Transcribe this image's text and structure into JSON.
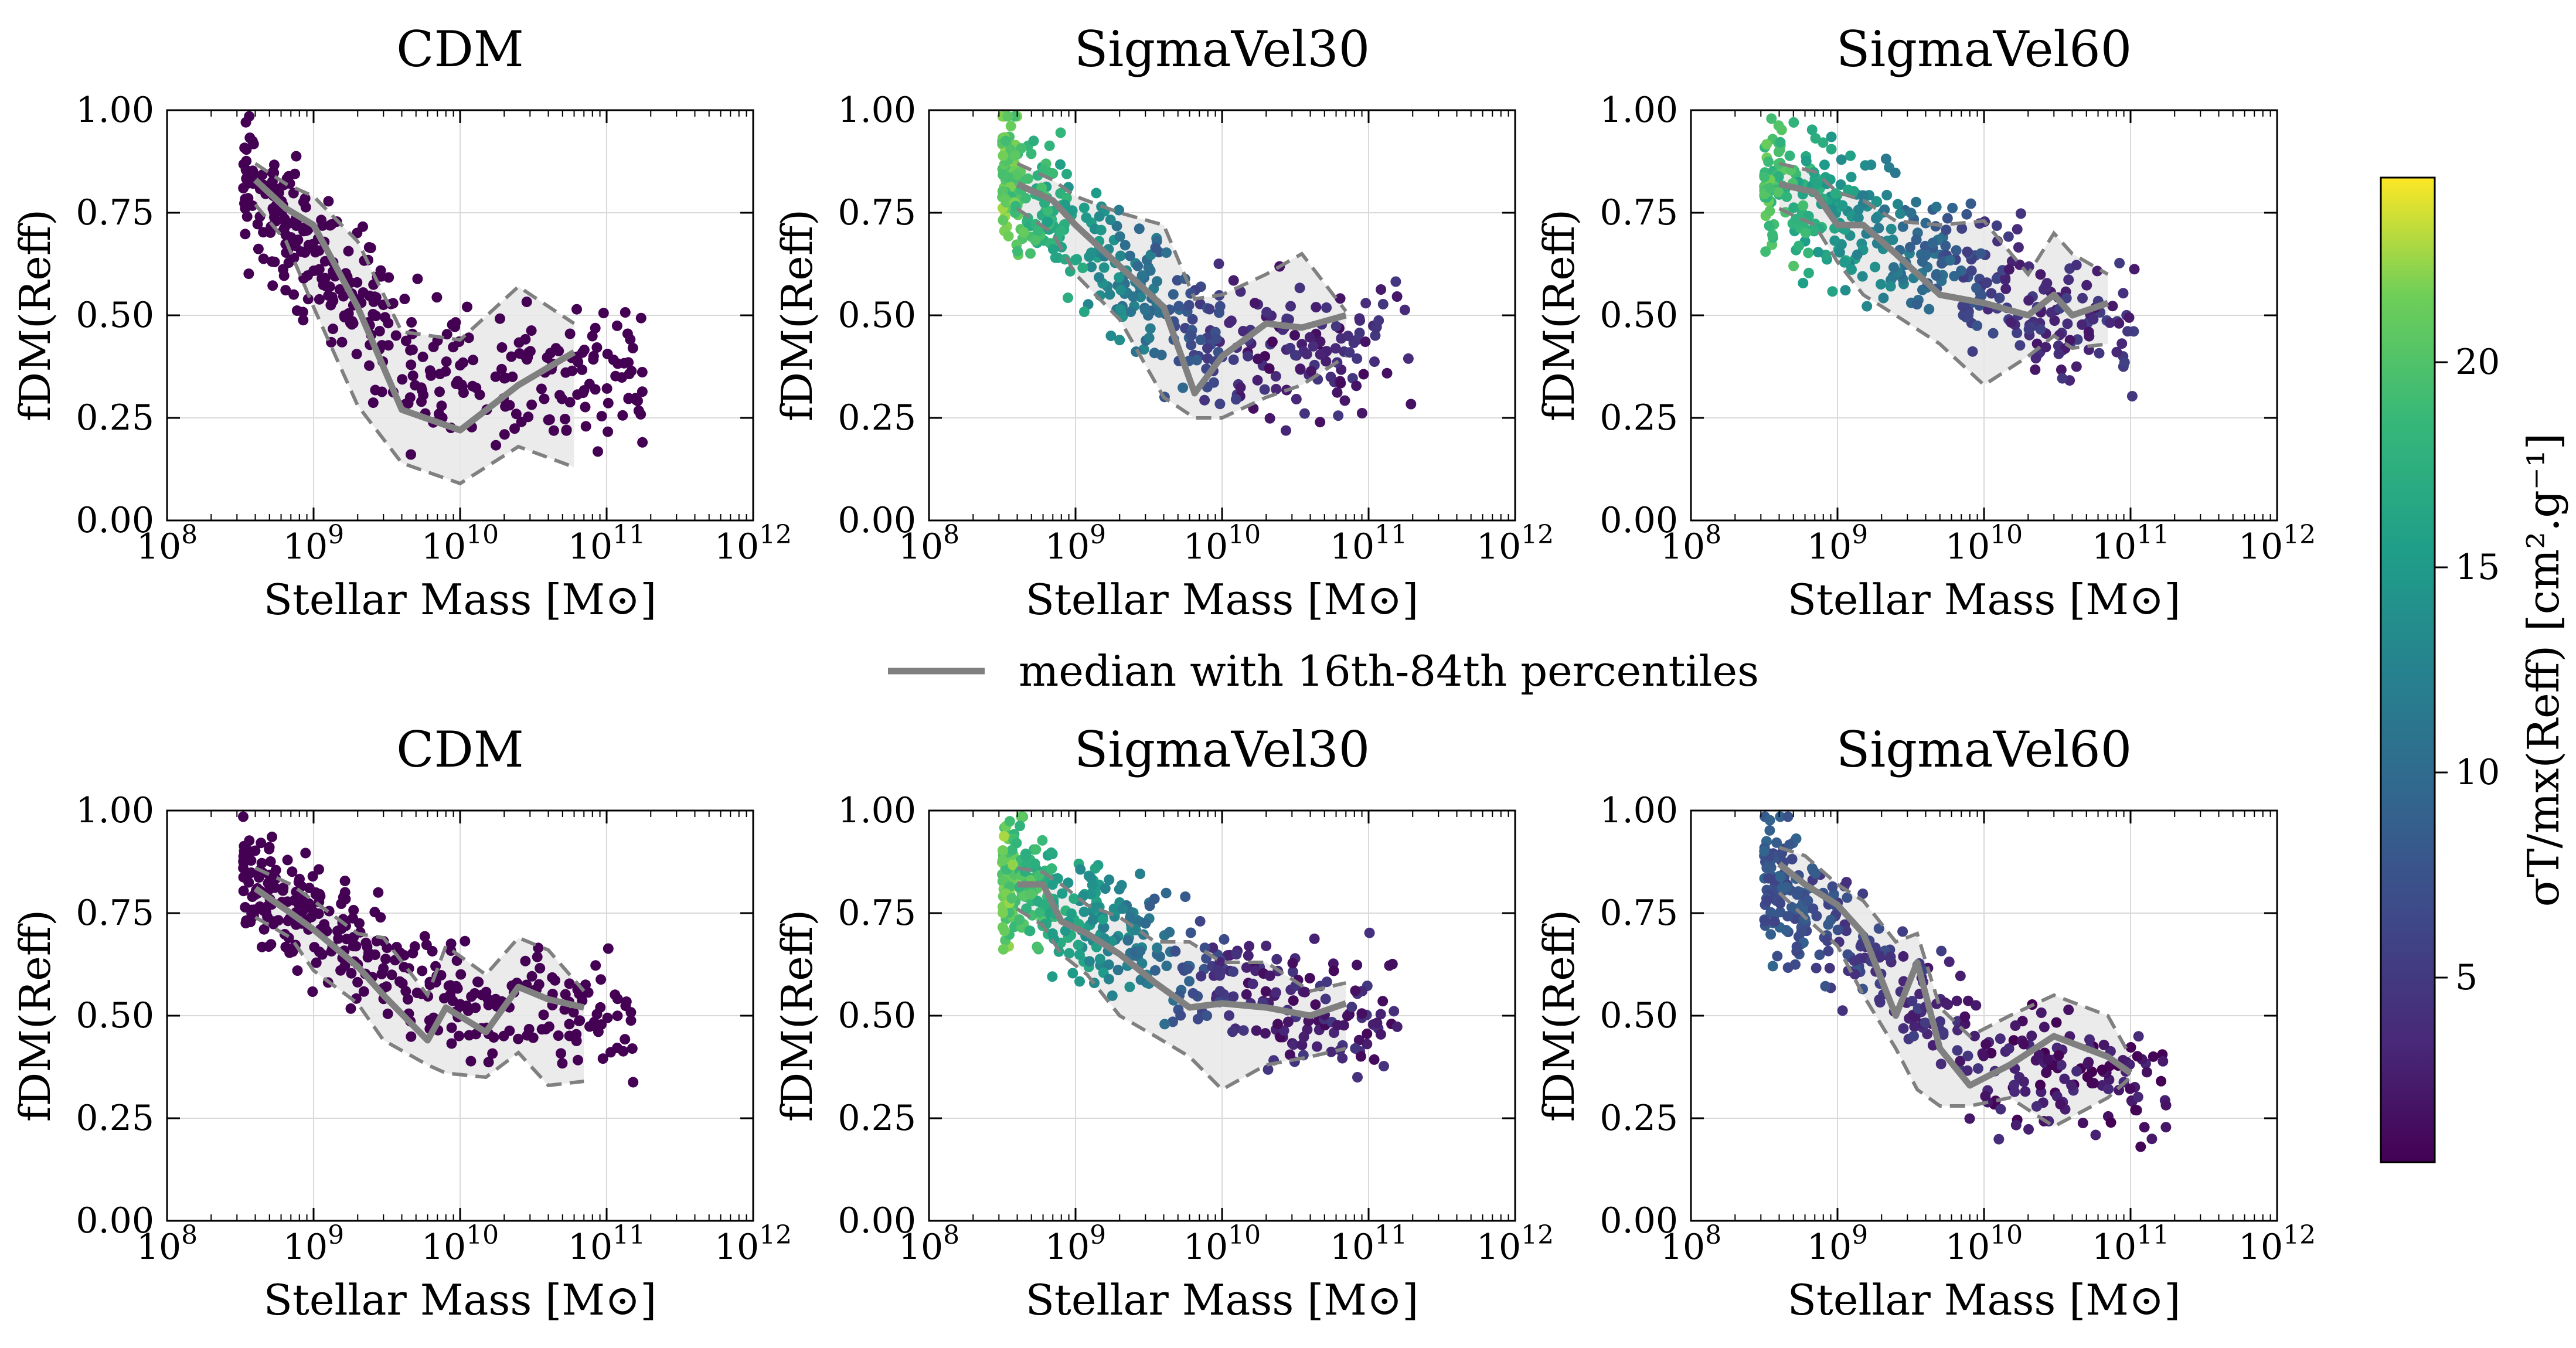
{
  "figure": {
    "legend_label": "median with 16th-84th percentiles",
    "median_color": "#808080",
    "band_color": "#e8e8e8",
    "grid_color": "#d9d9d9"
  },
  "colorbar": {
    "label": "σT/mx(Reff) [cm².g⁻¹]",
    "range": [
      0.5,
      24.5
    ],
    "ticks": [
      5,
      10,
      15,
      20
    ],
    "tick_labels": [
      "5",
      "10",
      "15",
      "20"
    ],
    "colormap": "viridis"
  },
  "chart_data": [
    {
      "type": "scatter",
      "title": "CDM",
      "xlabel": "Stellar Mass [M⊙]",
      "ylabel": "fDM(Reff)",
      "xscale": "log",
      "xlim": [
        100000000.0,
        1000000000000.0
      ],
      "ylim": [
        0,
        1
      ],
      "xtick_labels": [
        "10^8",
        "10^9",
        "10^10",
        "10^11",
        "10^12"
      ],
      "ytick_labels": [
        "0.00",
        "0.25",
        "0.50",
        "0.75",
        "1.00"
      ],
      "grid": true,
      "color_range": [
        0.5,
        1.5
      ],
      "median": {
        "x": [
          400000000.0,
          650000000.0,
          1000000000.0,
          2000000000.0,
          4000000000.0,
          10000000000.0,
          25000000000.0,
          60000000000.0
        ],
        "y": [
          0.83,
          0.76,
          0.72,
          0.52,
          0.27,
          0.22,
          0.33,
          0.41
        ],
        "p16": [
          0.77,
          0.68,
          0.52,
          0.28,
          0.14,
          0.09,
          0.18,
          0.13
        ],
        "p84": [
          0.87,
          0.82,
          0.79,
          0.68,
          0.46,
          0.44,
          0.57,
          0.48
        ]
      },
      "points": {
        "n": 360,
        "x_log_range": [
          8.52,
          11.25
        ],
        "slope": -0.42,
        "plateau_y": 0.35,
        "scatter": 0.13,
        "color_low": 0.7,
        "color_high": 1.3,
        "seed": 11
      }
    },
    {
      "type": "scatter",
      "title": "SigmaVel30",
      "xlabel": "Stellar Mass [M⊙]",
      "ylabel": "fDM(Reff)",
      "xscale": "log",
      "xlim": [
        100000000.0,
        1000000000000.0
      ],
      "ylim": [
        0,
        1
      ],
      "xtick_labels": [
        "10^8",
        "10^9",
        "10^10",
        "10^11",
        "10^12"
      ],
      "ytick_labels": [
        "0.00",
        "0.25",
        "0.50",
        "0.75",
        "1.00"
      ],
      "grid": true,
      "color_range": [
        0.5,
        24.5
      ],
      "median": {
        "x": [
          400000000.0,
          700000000.0,
          1000000000.0,
          2000000000.0,
          4000000000.0,
          6500000000.0,
          10000000000.0,
          20000000000.0,
          35000000000.0,
          70000000000.0
        ],
        "y": [
          0.82,
          0.78,
          0.72,
          0.62,
          0.52,
          0.31,
          0.4,
          0.48,
          0.47,
          0.5
        ],
        "p16": [
          0.76,
          0.7,
          0.6,
          0.49,
          0.3,
          0.25,
          0.25,
          0.3,
          0.33,
          0.4
        ],
        "p84": [
          0.87,
          0.83,
          0.79,
          0.75,
          0.72,
          0.54,
          0.55,
          0.6,
          0.65,
          0.51
        ]
      },
      "points": {
        "n": 420,
        "x_log_range": [
          8.5,
          11.3
        ],
        "slope": -0.3,
        "plateau_y": 0.42,
        "scatter": 0.12,
        "color_low": 3,
        "color_high": 21,
        "seed": 23
      }
    },
    {
      "type": "scatter",
      "title": "SigmaVel60",
      "xlabel": "Stellar Mass [M⊙]",
      "ylabel": "fDM(Reff)",
      "xscale": "log",
      "xlim": [
        100000000.0,
        1000000000000.0
      ],
      "ylim": [
        0,
        1
      ],
      "xtick_labels": [
        "10^8",
        "10^9",
        "10^10",
        "10^11",
        "10^12"
      ],
      "ytick_labels": [
        "0.00",
        "0.25",
        "0.50",
        "0.75",
        "1.00"
      ],
      "grid": true,
      "color_range": [
        0.5,
        24.5
      ],
      "median": {
        "x": [
          400000000.0,
          700000000.0,
          1000000000.0,
          1500000000.0,
          2500000000.0,
          5000000000.0,
          10000000000.0,
          20000000000.0,
          30000000000.0,
          40000000000.0,
          70000000000.0
        ],
        "y": [
          0.82,
          0.8,
          0.72,
          0.72,
          0.65,
          0.55,
          0.53,
          0.5,
          0.55,
          0.5,
          0.53
        ],
        "p16": [
          0.76,
          0.72,
          0.63,
          0.55,
          0.5,
          0.43,
          0.33,
          0.4,
          0.45,
          0.42,
          0.43
        ],
        "p84": [
          0.87,
          0.85,
          0.8,
          0.78,
          0.73,
          0.72,
          0.73,
          0.6,
          0.7,
          0.65,
          0.6
        ]
      },
      "points": {
        "n": 400,
        "x_log_range": [
          8.5,
          11.05
        ],
        "slope": -0.17,
        "plateau_y": 0.48,
        "scatter": 0.12,
        "color_low": 4,
        "color_high": 20,
        "seed": 37
      }
    },
    {
      "type": "scatter",
      "title": "CDM",
      "xlabel": "Stellar Mass [M⊙]",
      "ylabel": "fDM(Reff)",
      "xscale": "log",
      "xlim": [
        100000000.0,
        1000000000000.0
      ],
      "ylim": [
        0,
        1
      ],
      "xtick_labels": [
        "10^8",
        "10^9",
        "10^10",
        "10^11",
        "10^12"
      ],
      "ytick_labels": [
        "0.00",
        "0.25",
        "0.50",
        "0.75",
        "1.00"
      ],
      "grid": true,
      "color_range": [
        0.5,
        1.5
      ],
      "median": {
        "x": [
          400000000.0,
          700000000.0,
          1000000000.0,
          2000000000.0,
          3000000000.0,
          6000000000.0,
          8000000000.0,
          15000000000.0,
          25000000000.0,
          40000000000.0,
          70000000000.0
        ],
        "y": [
          0.81,
          0.75,
          0.71,
          0.62,
          0.55,
          0.44,
          0.52,
          0.46,
          0.57,
          0.54,
          0.52
        ],
        "p16": [
          0.74,
          0.69,
          0.61,
          0.53,
          0.44,
          0.38,
          0.36,
          0.35,
          0.41,
          0.33,
          0.34
        ],
        "p84": [
          0.86,
          0.82,
          0.78,
          0.7,
          0.69,
          0.55,
          0.67,
          0.6,
          0.69,
          0.66,
          0.56
        ]
      },
      "points": {
        "n": 330,
        "x_log_range": [
          8.52,
          11.2
        ],
        "slope": -0.2,
        "plateau_y": 0.5,
        "scatter": 0.11,
        "color_low": 0.7,
        "color_high": 1.3,
        "seed": 51
      }
    },
    {
      "type": "scatter",
      "title": "SigmaVel30",
      "xlabel": "Stellar Mass [M⊙]",
      "ylabel": "fDM(Reff)",
      "xscale": "log",
      "xlim": [
        100000000.0,
        1000000000000.0
      ],
      "ylim": [
        0,
        1
      ],
      "xtick_labels": [
        "10^8",
        "10^9",
        "10^10",
        "10^11",
        "10^12"
      ],
      "ytick_labels": [
        "0.00",
        "0.25",
        "0.50",
        "0.75",
        "1.00"
      ],
      "grid": true,
      "color_range": [
        0.5,
        24.5
      ],
      "median": {
        "x": [
          400000000.0,
          600000000.0,
          800000000.0,
          1200000000.0,
          2000000000.0,
          3500000000.0,
          6000000000.0,
          10000000000.0,
          20000000000.0,
          40000000000.0,
          70000000000.0
        ],
        "y": [
          0.82,
          0.82,
          0.73,
          0.7,
          0.65,
          0.58,
          0.52,
          0.53,
          0.52,
          0.5,
          0.53
        ],
        "p16": [
          0.76,
          0.72,
          0.65,
          0.6,
          0.5,
          0.45,
          0.4,
          0.32,
          0.38,
          0.4,
          0.42
        ],
        "p84": [
          0.86,
          0.85,
          0.82,
          0.77,
          0.74,
          0.68,
          0.68,
          0.63,
          0.63,
          0.56,
          0.58
        ]
      },
      "points": {
        "n": 430,
        "x_log_range": [
          8.5,
          11.2
        ],
        "slope": -0.17,
        "plateau_y": 0.52,
        "scatter": 0.11,
        "color_low": 3,
        "color_high": 21,
        "seed": 67
      }
    },
    {
      "type": "scatter",
      "title": "SigmaVel60",
      "xlabel": "Stellar Mass [M⊙]",
      "ylabel": "fDM(Reff)",
      "xscale": "log",
      "xlim": [
        100000000.0,
        1000000000000.0
      ],
      "ylim": [
        0,
        1
      ],
      "xtick_labels": [
        "10^8",
        "10^9",
        "10^10",
        "10^11",
        "10^12"
      ],
      "ytick_labels": [
        "0.00",
        "0.25",
        "0.50",
        "0.75",
        "1.00"
      ],
      "grid": true,
      "color_range": [
        0.5,
        24.5
      ],
      "median": {
        "x": [
          400000000.0,
          600000000.0,
          1000000000.0,
          1500000000.0,
          2500000000.0,
          3500000000.0,
          5000000000.0,
          8000000000.0,
          15000000000.0,
          30000000000.0,
          70000000000.0,
          100000000000.0
        ],
        "y": [
          0.87,
          0.82,
          0.77,
          0.7,
          0.5,
          0.63,
          0.42,
          0.33,
          0.38,
          0.45,
          0.4,
          0.36
        ],
        "p16": [
          0.8,
          0.74,
          0.67,
          0.55,
          0.42,
          0.32,
          0.28,
          0.28,
          0.3,
          0.23,
          0.3,
          0.35
        ],
        "p84": [
          0.91,
          0.89,
          0.82,
          0.78,
          0.68,
          0.7,
          0.52,
          0.45,
          0.5,
          0.55,
          0.5,
          0.4
        ]
      },
      "points": {
        "n": 360,
        "x_log_range": [
          8.5,
          11.25
        ],
        "slope": -0.3,
        "plateau_y": 0.36,
        "scatter": 0.11,
        "color_low": 2,
        "color_high": 8,
        "seed": 83
      }
    }
  ]
}
